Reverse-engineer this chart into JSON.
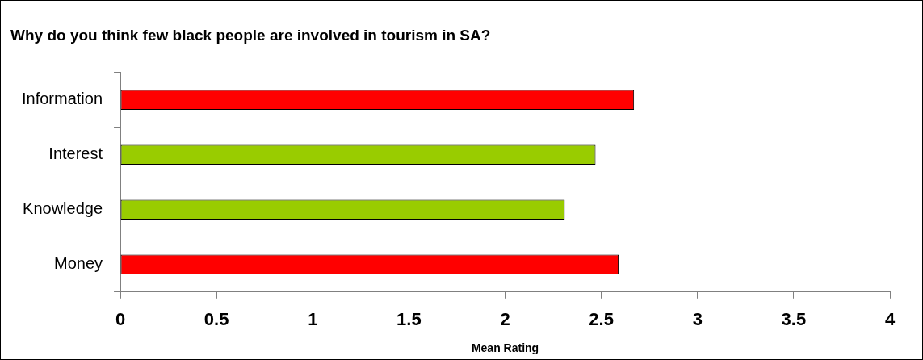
{
  "chart_data": {
    "type": "bar",
    "orientation": "horizontal",
    "title": "Why do you think few black people are involved in tourism in SA?",
    "xlabel": "Mean Rating",
    "categories": [
      "Information",
      "Interest",
      "Knowledge",
      "Money"
    ],
    "values": [
      2.67,
      2.47,
      2.31,
      2.59
    ],
    "colors": [
      "#ff0000",
      "#99cc00",
      "#99cc00",
      "#ff0000"
    ],
    "xlim": [
      0,
      4
    ],
    "xticks": [
      0,
      0.5,
      1,
      1.5,
      2,
      2.5,
      3,
      3.5,
      4
    ],
    "grid": false,
    "legend": false
  }
}
